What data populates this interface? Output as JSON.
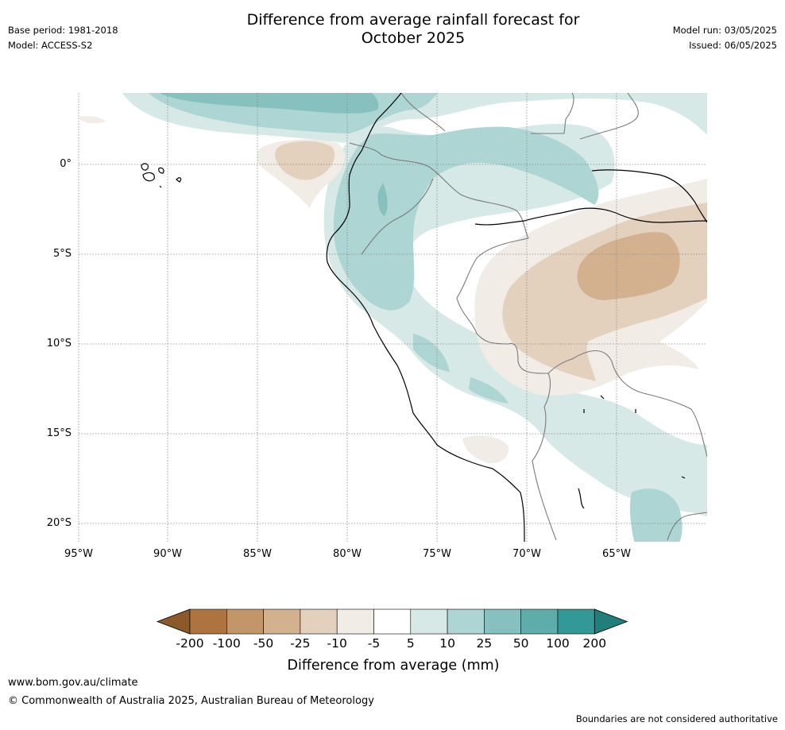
{
  "header": {
    "title_line1": "Difference from average rainfall forecast for",
    "title_line2": "October 2025",
    "base_period": "Base period: 1981-2018",
    "model": "Model: ACCESS-S2",
    "model_run": "Model run: 03/05/2025",
    "issued": "Issued: 06/05/2025"
  },
  "map": {
    "lat_labels": [
      "0°",
      "5°S",
      "10°S",
      "15°S",
      "20°S"
    ],
    "lon_labels": [
      "95°W",
      "90°W",
      "85°W",
      "80°W",
      "75°W",
      "70°W",
      "65°W"
    ],
    "grid_lines": true
  },
  "colorbar": {
    "title": "Difference from average (mm)",
    "ticks": [
      "-200",
      "-100",
      "-50",
      "-25",
      "-10",
      "-5",
      "5",
      "10",
      "25",
      "50",
      "100",
      "200"
    ],
    "colors": [
      "#8c5a2a",
      "#ae743f",
      "#c29669",
      "#d3b18f",
      "#e3d0bd",
      "#f1ece6",
      "#ffffff",
      "#d6e9e7",
      "#acd5d3",
      "#86c1bf",
      "#5eadab",
      "#339996",
      "#217f7b"
    ]
  },
  "footer": {
    "url": "www.bom.gov.au/climate",
    "copyright": "© Commonwealth of Australia 2025, Australian Bureau of Meteorology",
    "disclaimer": "Boundaries are not considered authoritative"
  }
}
